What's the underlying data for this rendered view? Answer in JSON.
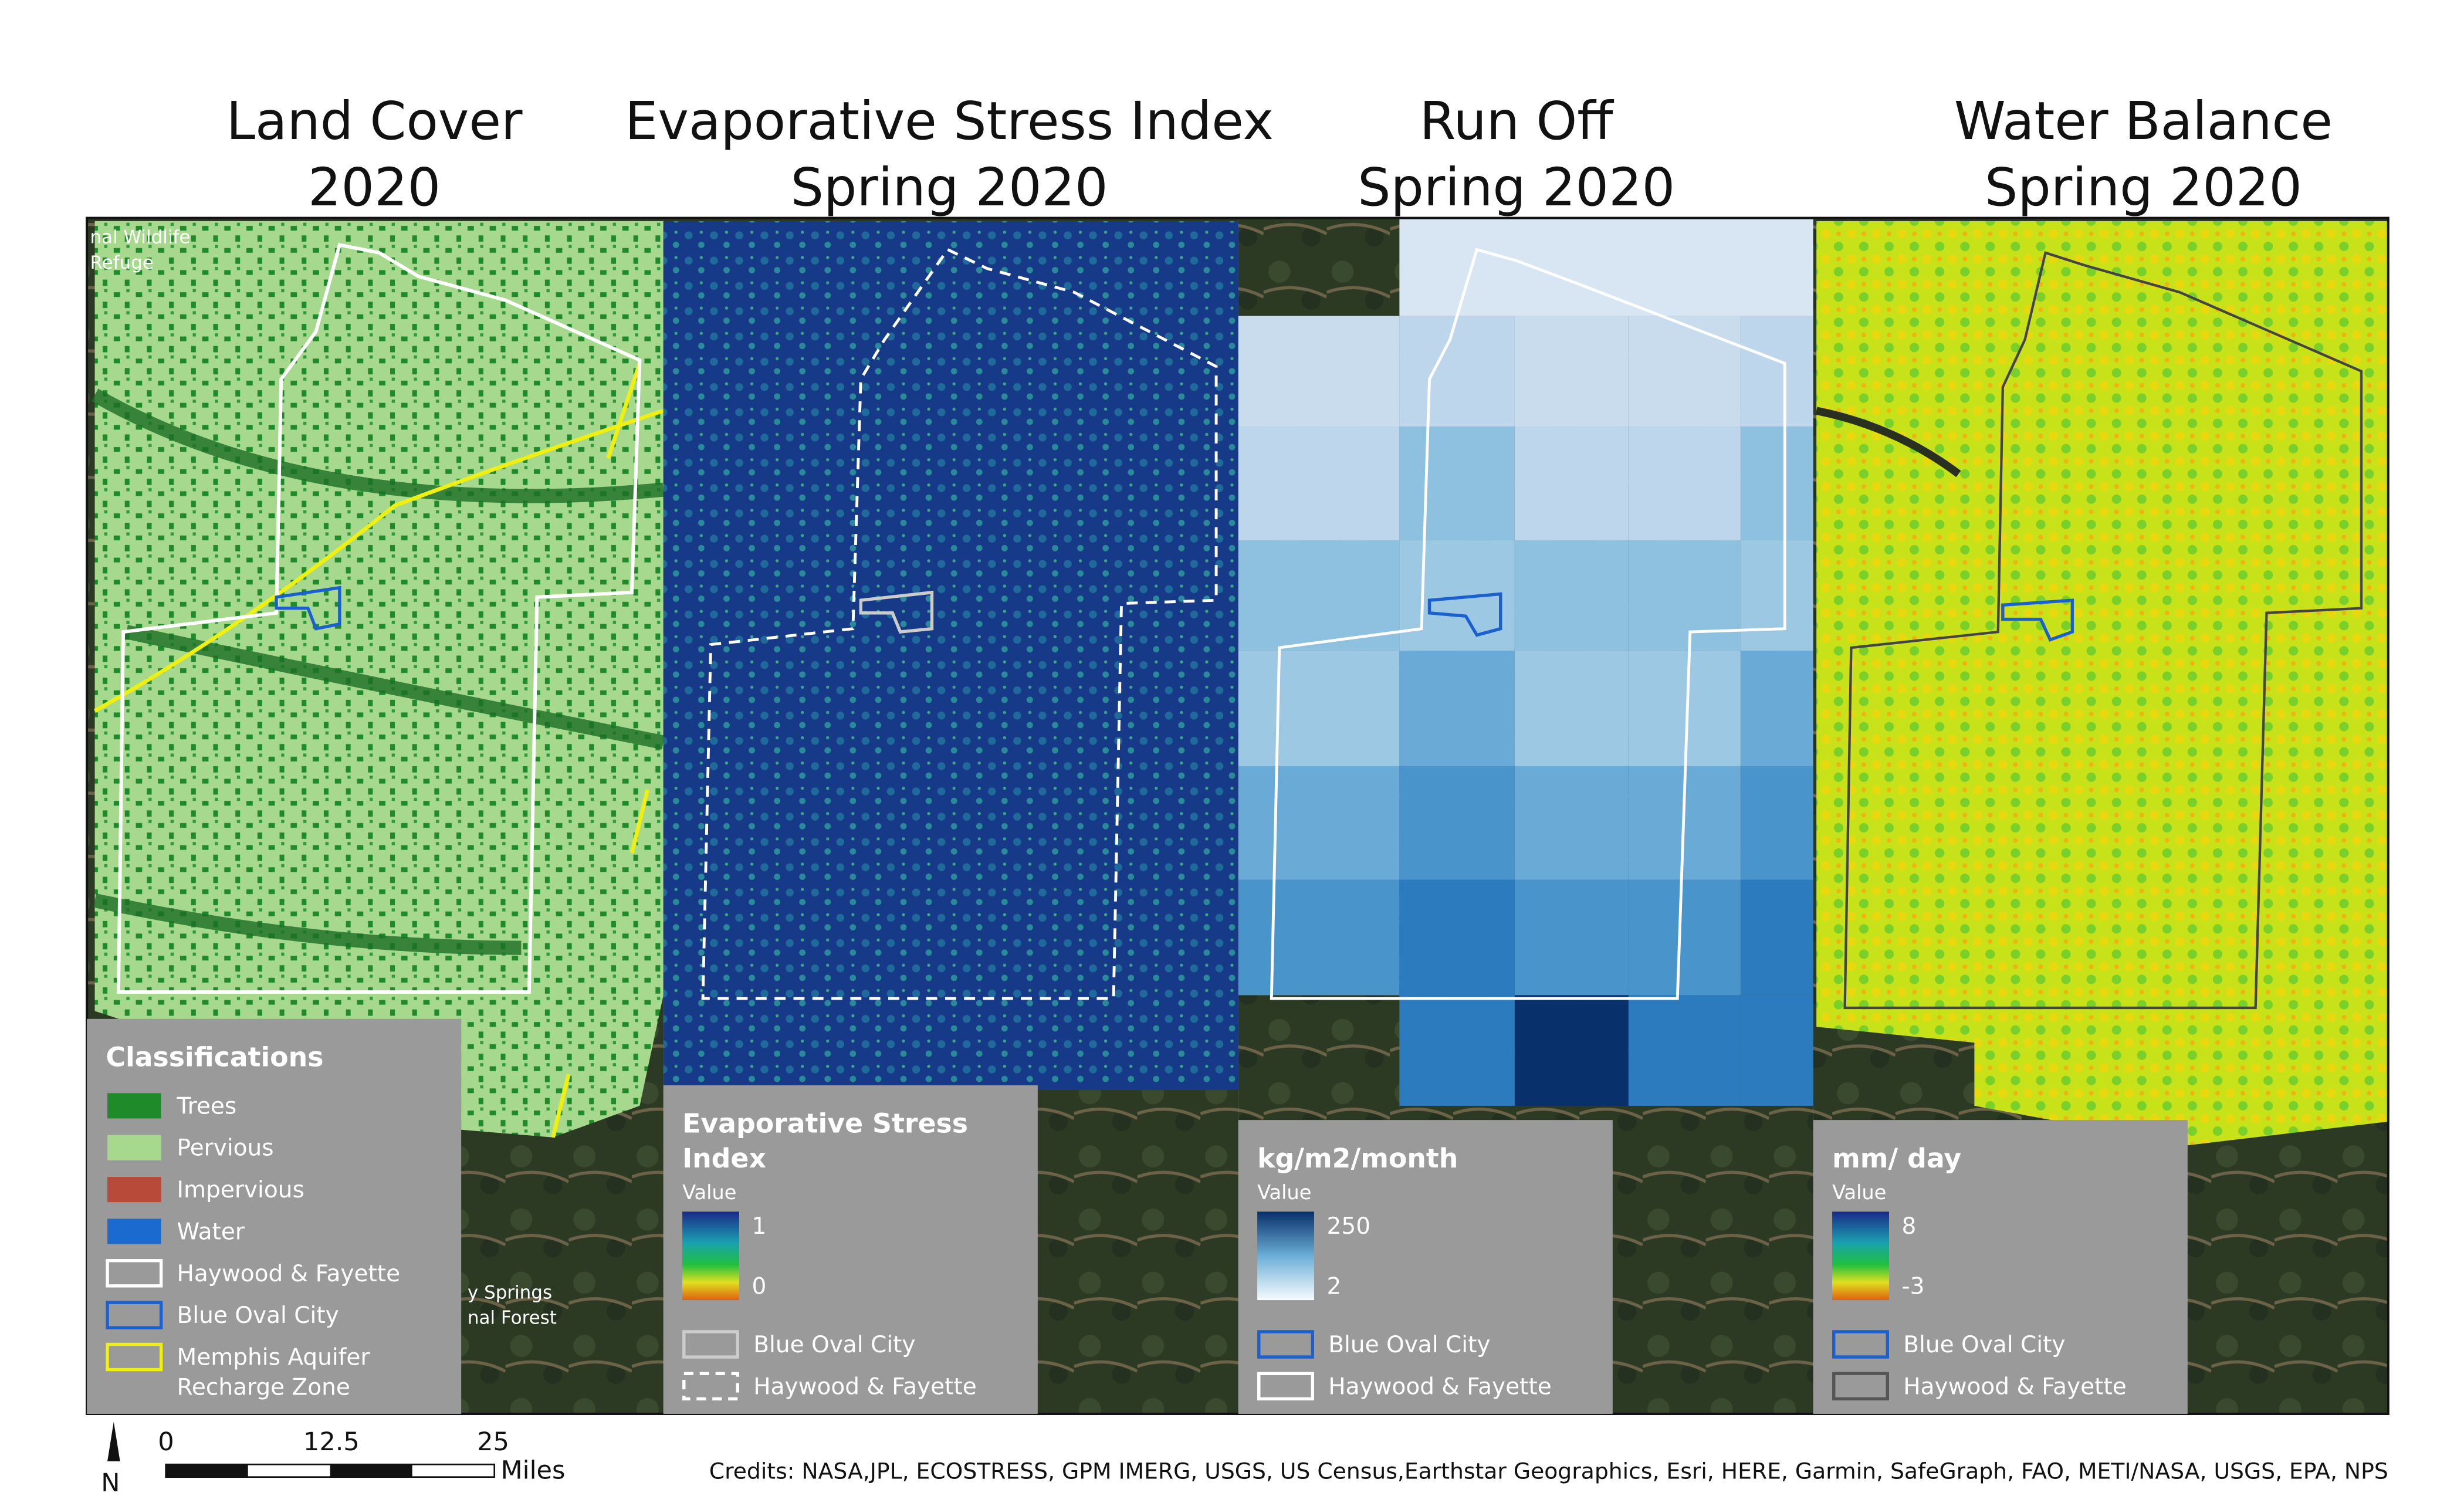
{
  "panels": [
    {
      "title": [
        "Land Cover",
        "2020"
      ],
      "legend": {
        "title": [
          "Classifications"
        ],
        "items": [
          "Trees",
          "Pervious",
          "Impervious",
          "Water",
          "Haywood & Fayette",
          "Blue Oval City",
          [
            "Memphis Aquifer",
            "Recharge Zone"
          ]
        ]
      }
    },
    {
      "title": [
        "Evaporative Stress Index",
        "Spring 2020"
      ],
      "legend": {
        "title": [
          "Evaporative Stress",
          "Index"
        ],
        "subtitle": "Value",
        "ramp": [
          "1",
          "0"
        ],
        "items": [
          "Blue Oval City",
          "Haywood & Fayette"
        ]
      }
    },
    {
      "title": [
        "Run Off",
        "Spring 2020"
      ],
      "legend": {
        "title": [
          "kg/m2/month"
        ],
        "subtitle": "Value",
        "ramp": [
          "250",
          "2"
        ],
        "items": [
          "Blue Oval City",
          "Haywood & Fayette"
        ]
      }
    },
    {
      "title": [
        "Water Balance",
        "Spring 2020"
      ],
      "legend": {
        "title": [
          "mm/ day"
        ],
        "subtitle": "Value",
        "ramp": [
          "8",
          "-3"
        ],
        "items": [
          "Blue Oval City",
          "Haywood & Fayette"
        ]
      }
    }
  ],
  "map_labels": [
    [
      "nal Wildlife",
      "Refuge"
    ],
    [
      "y Springs",
      "nal Forest"
    ]
  ],
  "scale_bar": {
    "ticks": [
      "0",
      "12.5",
      "25"
    ],
    "unit": "Miles"
  },
  "north": "N",
  "credits": "Credits: NASA,JPL, ECOSTRESS, GPM IMERG, USGS, US Census,Earthstar Geographics, Esri, HERE, Garmin, SafeGraph, FAO, METI/NASA, USGS, EPA, NPS"
}
